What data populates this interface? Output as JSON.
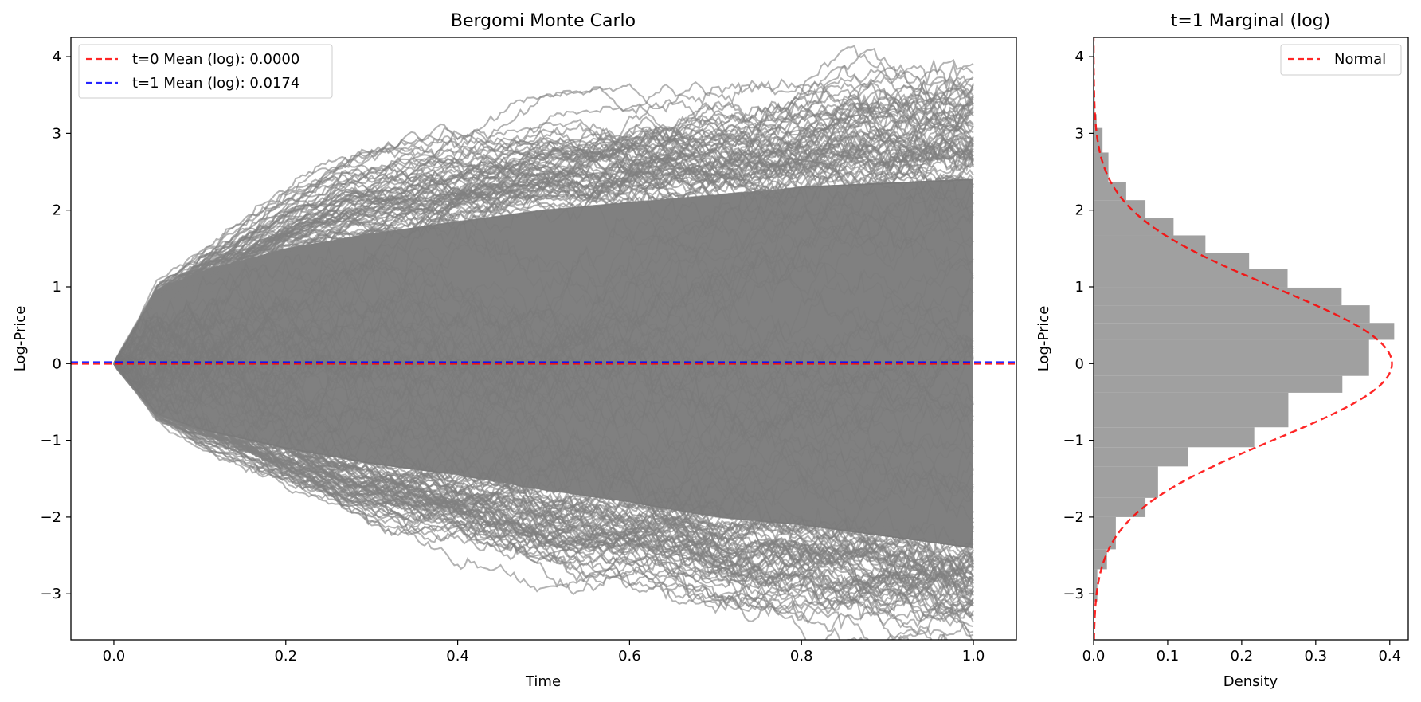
{
  "chart_data": [
    {
      "type": "line",
      "title": "Bergomi Monte Carlo",
      "xlabel": "Time",
      "ylabel": "Log-Price",
      "xlim": [
        -0.05,
        1.05
      ],
      "ylim": [
        -3.6,
        4.25
      ],
      "xticks": [
        0.0,
        0.2,
        0.4,
        0.6,
        0.8,
        1.0
      ],
      "xtick_labels": [
        "0.0",
        "0.2",
        "0.4",
        "0.6",
        "0.8",
        "1.0"
      ],
      "yticks": [
        -3,
        -2,
        -1,
        0,
        1,
        2,
        3,
        4
      ],
      "ytick_labels": [
        "−3",
        "−2",
        "−1",
        "0",
        "1",
        "2",
        "3",
        "4"
      ],
      "grid": false,
      "paths_color": "#808080",
      "spread_envelope": {
        "t": [
          0.0,
          0.05,
          0.1,
          0.2,
          0.3,
          0.4,
          0.5,
          0.6,
          0.7,
          0.8,
          0.9,
          1.0
        ],
        "upper": [
          0.0,
          0.95,
          1.2,
          1.5,
          1.7,
          1.85,
          2.0,
          2.1,
          2.2,
          2.3,
          2.35,
          2.4
        ],
        "lower": [
          0.0,
          -0.65,
          -0.85,
          -1.1,
          -1.3,
          -1.45,
          -1.65,
          -1.8,
          -2.0,
          -2.1,
          -2.25,
          -2.4
        ]
      },
      "horizontal_lines": [
        {
          "label": "t=0 Mean (log): 0.0000",
          "y": 0.0,
          "color": "#ff0000",
          "style": "dashed"
        },
        {
          "label": "t=1 Mean (log): 0.0174",
          "y": 0.0174,
          "color": "#0000ff",
          "style": "dashed"
        }
      ],
      "legend_position": "upper-left"
    },
    {
      "type": "histogram",
      "title": "t=1 Marginal (log)",
      "xlabel": "Density",
      "ylabel": "Log-Price",
      "xlim": [
        0.0,
        0.425
      ],
      "ylim": [
        -3.6,
        4.25
      ],
      "xticks": [
        0.0,
        0.1,
        0.2,
        0.3,
        0.4
      ],
      "xtick_labels": [
        "0.0",
        "0.1",
        "0.2",
        "0.3",
        "0.4"
      ],
      "yticks": [
        -3,
        -2,
        -1,
        0,
        1,
        2,
        3,
        4
      ],
      "ytick_labels": [
        "−3",
        "−2",
        "−1",
        "0",
        "1",
        "2",
        "3",
        "4"
      ],
      "orientation": "horizontal",
      "bar_color": "#a0a0a0",
      "bin_edges": [
        -3.1,
        -2.68,
        -2.42,
        -2.0,
        -1.75,
        -1.34,
        -1.09,
        -0.83,
        -0.38,
        -0.16,
        0.31,
        0.53,
        0.76,
        0.99,
        1.23,
        1.44,
        1.67,
        1.9,
        2.13,
        2.37,
        2.75,
        3.07,
        3.25,
        3.55
      ],
      "densities": [
        0.005,
        0.018,
        0.03,
        0.07,
        0.087,
        0.127,
        0.217,
        0.263,
        0.336,
        0.372,
        0.406,
        0.373,
        0.335,
        0.262,
        0.21,
        0.151,
        0.108,
        0.07,
        0.044,
        0.02,
        0.012,
        0.004,
        0.0015
      ],
      "series": [
        {
          "name": "Normal",
          "type": "pdf",
          "mean": 0.0,
          "std": 0.99,
          "color": "#ff0000",
          "style": "dashed"
        }
      ],
      "legend_position": "upper-right"
    }
  ]
}
